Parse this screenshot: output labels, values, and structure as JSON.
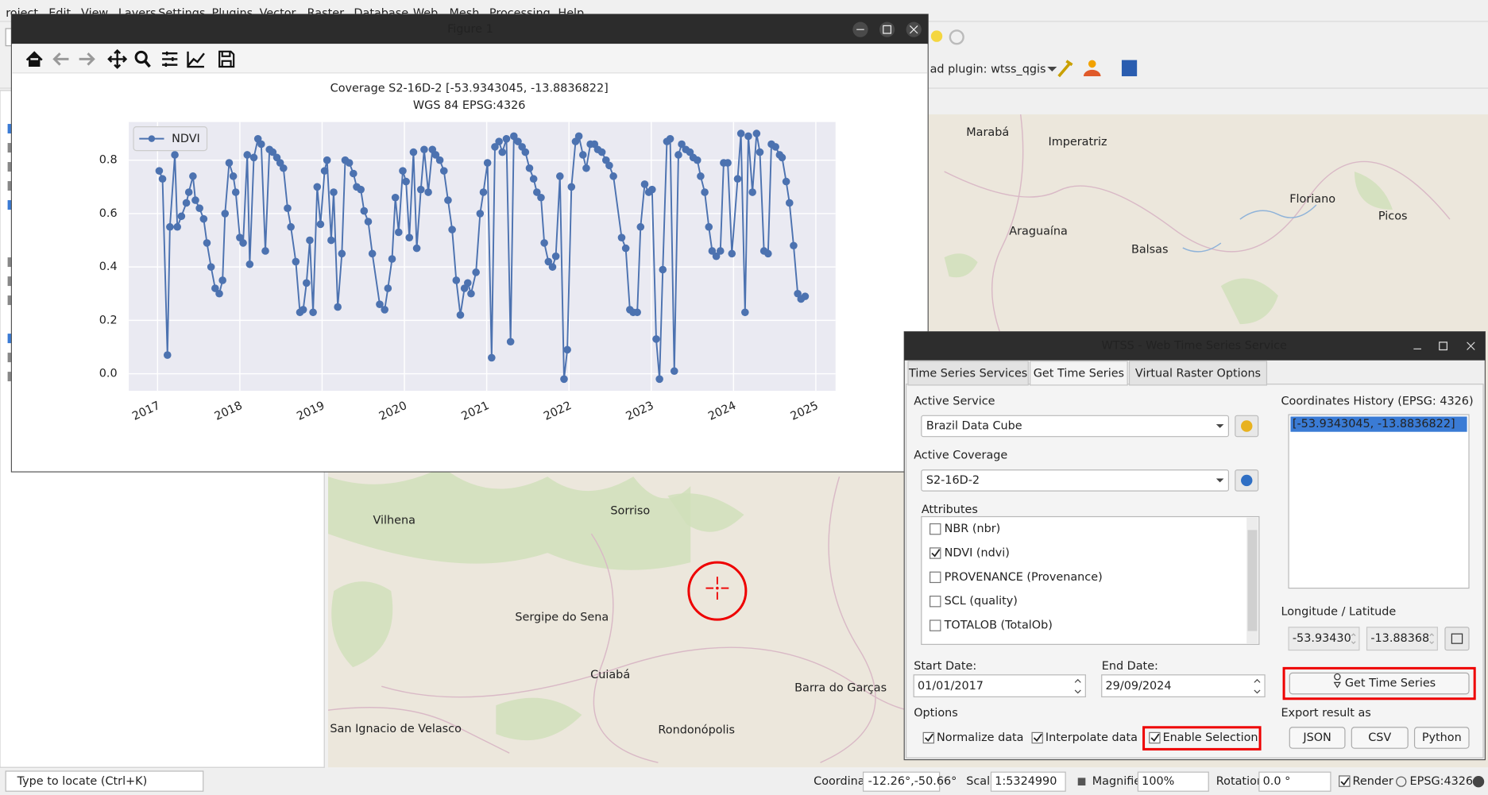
{
  "menu": [
    "roject",
    "Edit",
    "View",
    "Layers",
    "Settings",
    "Plugins",
    "Vector",
    "Raster",
    "Database",
    "Web",
    "Mesh",
    "Processing",
    "Help"
  ],
  "toolbar_text": "ad plugin: wtss_qgis",
  "figure": {
    "window_title": "Figure 1"
  },
  "chart_data": {
    "type": "line",
    "title": "Coverage S2-16D-2 [-53.9343045, -13.8836822]",
    "subtitle": "WGS 84 EPSG:4326",
    "x": [
      2017.02,
      2017.06,
      2017.12,
      2017.15,
      2017.21,
      2017.24,
      2017.29,
      2017.35,
      2017.38,
      2017.43,
      2017.46,
      2017.51,
      2017.56,
      2017.6,
      2017.65,
      2017.7,
      2017.75,
      2017.79,
      2017.82,
      2017.87,
      2017.92,
      2017.95,
      2018.0,
      2018.04,
      2018.09,
      2018.12,
      2018.17,
      2018.22,
      2018.26,
      2018.31,
      2018.36,
      2018.4,
      2018.45,
      2018.49,
      2018.53,
      2018.58,
      2018.62,
      2018.68,
      2018.73,
      2018.77,
      2018.81,
      2018.85,
      2018.89,
      2018.94,
      2018.98,
      2019.03,
      2019.06,
      2019.11,
      2019.14,
      2019.19,
      2019.24,
      2019.28,
      2019.33,
      2019.38,
      2019.42,
      2019.47,
      2019.51,
      2019.56,
      2019.61,
      2019.7,
      2019.76,
      2019.8,
      2019.85,
      2019.89,
      2019.93,
      2019.98,
      2020.02,
      2020.06,
      2020.11,
      2020.15,
      2020.2,
      2020.24,
      2020.29,
      2020.34,
      2020.38,
      2020.43,
      2020.48,
      2020.53,
      2020.58,
      2020.63,
      2020.68,
      2020.73,
      2020.77,
      2020.81,
      2020.87,
      2020.92,
      2020.96,
      2021.01,
      2021.06,
      2021.1,
      2021.15,
      2021.19,
      2021.24,
      2021.29,
      2021.33,
      2021.38,
      2021.43,
      2021.47,
      2021.52,
      2021.57,
      2021.61,
      2021.66,
      2021.7,
      2021.75,
      2021.8,
      2021.84,
      2021.89,
      2021.94,
      2021.98,
      2022.03,
      2022.08,
      2022.12,
      2022.17,
      2022.21,
      2022.26,
      2022.31,
      2022.35,
      2022.4,
      2022.45,
      2022.49,
      2022.54,
      2022.64,
      2022.69,
      2022.74,
      2022.78,
      2022.83,
      2022.87,
      2022.92,
      2022.97,
      2023.01,
      2023.06,
      2023.1,
      2023.14,
      2023.19,
      2023.23,
      2023.28,
      2023.33,
      2023.37,
      2023.42,
      2023.47,
      2023.51,
      2023.56,
      2023.6,
      2023.65,
      2023.7,
      2023.74,
      2023.79,
      2023.84,
      2023.88,
      2023.93,
      2023.98,
      2024.05,
      2024.09,
      2024.14,
      2024.18,
      2024.23,
      2024.28,
      2024.32,
      2024.37,
      2024.42,
      2024.46,
      2024.51,
      2024.56,
      2024.59,
      2024.64,
      2024.68,
      2024.73,
      2024.78,
      2024.82,
      2024.87
    ],
    "series": [
      {
        "name": "NDVI",
        "color": "#4c72b0",
        "values": [
          0.76,
          0.73,
          0.07,
          0.55,
          0.82,
          0.55,
          0.59,
          0.64,
          0.68,
          0.74,
          0.65,
          0.62,
          0.58,
          0.49,
          0.4,
          0.32,
          0.3,
          0.35,
          0.6,
          0.79,
          0.74,
          0.68,
          0.51,
          0.49,
          0.82,
          0.41,
          0.81,
          0.88,
          0.86,
          0.46,
          0.84,
          0.83,
          0.81,
          0.79,
          0.77,
          0.62,
          0.55,
          0.42,
          0.23,
          0.24,
          0.34,
          0.5,
          0.23,
          0.7,
          0.56,
          0.76,
          0.8,
          0.5,
          0.68,
          0.25,
          0.45,
          0.8,
          0.79,
          0.75,
          0.7,
          0.69,
          0.61,
          0.57,
          0.45,
          0.26,
          0.24,
          0.32,
          0.43,
          0.66,
          0.53,
          0.76,
          0.72,
          0.51,
          0.83,
          0.47,
          0.69,
          0.84,
          0.68,
          0.84,
          0.82,
          0.8,
          0.76,
          0.65,
          0.54,
          0.35,
          0.22,
          0.32,
          0.34,
          0.3,
          0.38,
          0.6,
          0.68,
          0.79,
          0.06,
          0.85,
          0.87,
          0.83,
          0.88,
          0.12,
          0.89,
          0.87,
          0.85,
          0.83,
          0.77,
          0.73,
          0.68,
          0.66,
          0.49,
          0.42,
          0.4,
          0.44,
          0.74,
          -0.02,
          0.09,
          0.7,
          0.87,
          0.89,
          0.82,
          0.77,
          0.86,
          0.86,
          0.84,
          0.83,
          0.8,
          0.78,
          0.74,
          0.51,
          0.47,
          0.24,
          0.23,
          0.23,
          0.55,
          0.71,
          0.68,
          0.69,
          0.13,
          -0.02,
          0.39,
          0.87,
          0.88,
          0.01,
          0.82,
          0.86,
          0.84,
          0.83,
          0.81,
          0.8,
          0.74,
          0.68,
          0.55,
          0.46,
          0.44,
          0.46,
          0.79,
          0.79,
          0.45,
          0.73,
          0.9,
          0.23,
          0.89,
          0.68,
          0.9,
          0.83,
          0.46,
          0.45,
          0.86,
          0.85,
          0.82,
          0.81,
          0.72,
          0.64,
          0.48,
          0.3,
          0.28,
          0.29
        ]
      }
    ],
    "xlim": [
      2016.65,
      2025.24
    ],
    "xticks": [
      2017,
      2018,
      2019,
      2020,
      2021,
      2022,
      2023,
      2024,
      2025
    ],
    "ylim": [
      -0.064,
      0.943
    ],
    "yticks": [
      {
        "value": 0,
        "label": "0.0"
      },
      0.2,
      0.4,
      0.6,
      0.8
    ],
    "grid": true,
    "legend": "upper left"
  },
  "map_labels": [
    "Marabá",
    "Imperatriz",
    "Araguaína",
    "Balsas",
    "Floriano",
    "Picos",
    "Vilhena",
    "Sorriso",
    "Sergipe do Sena",
    "Cuiabá",
    "Barra do Garças",
    "Rondonópolis",
    "San Ignacio de Velasco"
  ],
  "dialog": {
    "title": "WTSS - Web Time Series Service",
    "tabs": [
      "Time Series Services",
      "Get Time Series",
      "Virtual Raster Options"
    ],
    "active_service_label": "Active Service",
    "active_service": "Brazil Data Cube",
    "active_coverage_label": "Active Coverage",
    "active_coverage": "S2-16D-2",
    "attributes_label": "Attributes",
    "attributes": [
      {
        "label": "NBR (nbr)",
        "checked": false
      },
      {
        "label": "NDVI (ndvi)",
        "checked": true
      },
      {
        "label": "PROVENANCE (Provenance)",
        "checked": false
      },
      {
        "label": "SCL (quality)",
        "checked": false
      },
      {
        "label": "TOTALOB (TotalOb)",
        "checked": false
      }
    ],
    "start_date_label": "Start Date:",
    "start_date": "01/01/2017",
    "end_date_label": "End Date:",
    "end_date": "29/09/2024",
    "options_label": "Options",
    "options": [
      {
        "label": "Normalize data",
        "checked": true
      },
      {
        "label": "Interpolate data",
        "checked": true
      },
      {
        "label": "Enable Selection",
        "checked": true
      }
    ],
    "history_label": "Coordinates History (EPSG: 4326)",
    "history": [
      "[-53.9343045, -13.8836822]"
    ],
    "lonlat_label": "Longitude / Latitude",
    "longitude": "-53.93430",
    "latitude": "-13.88368",
    "get_button": "Get Time Series",
    "export_label": "Export result as",
    "export_buttons": [
      "JSON",
      "CSV",
      "Python"
    ]
  },
  "status_bar": {
    "locate": "Type to locate (Ctrl+K)",
    "coordinate_label": "Coordinate",
    "coordinate": "-12.26°,-50.66°",
    "scale_label": "Scale",
    "scale": "1:5324990",
    "magnifier_label": "Magnifier",
    "magnifier": "100%",
    "rotation_label": "Rotation",
    "rotation": "0.0 °",
    "render_label": "Render",
    "crs": "EPSG:4326"
  }
}
